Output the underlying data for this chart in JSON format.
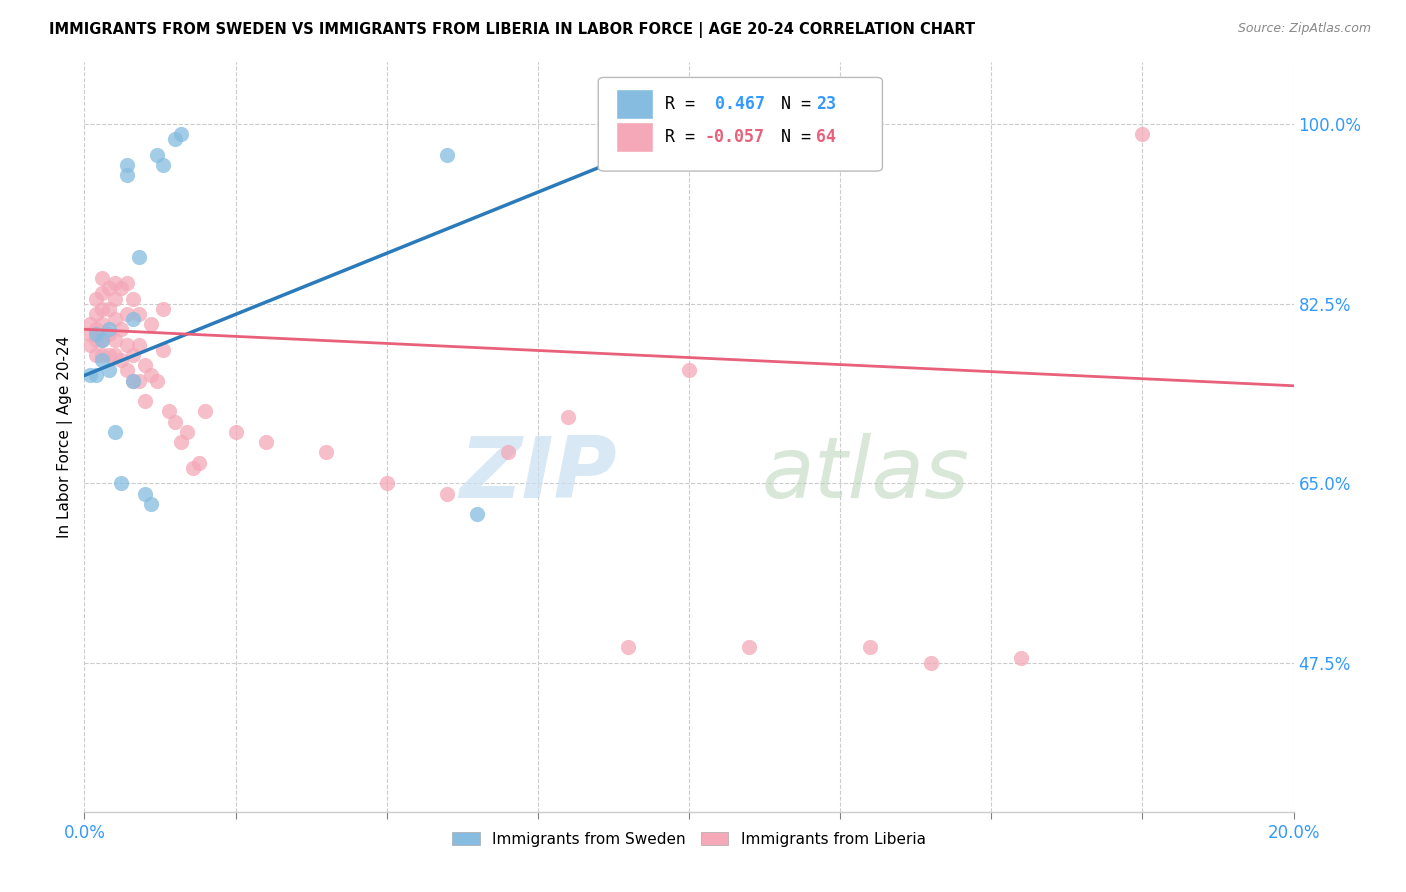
{
  "title": "IMMIGRANTS FROM SWEDEN VS IMMIGRANTS FROM LIBERIA IN LABOR FORCE | AGE 20-24 CORRELATION CHART",
  "source": "Source: ZipAtlas.com",
  "ylabel": "In Labor Force | Age 20-24",
  "ytick_labels": [
    "100.0%",
    "82.5%",
    "65.0%",
    "47.5%"
  ],
  "ytick_values": [
    1.0,
    0.825,
    0.65,
    0.475
  ],
  "legend_blue_r": "0.467",
  "legend_blue_n": "23",
  "legend_pink_r": "-0.057",
  "legend_pink_n": "64",
  "legend_label_blue": "Immigrants from Sweden",
  "legend_label_pink": "Immigrants from Liberia",
  "blue_dot_color": "#85bce0",
  "pink_dot_color": "#f4a8b8",
  "blue_line_color": "#2b7bba",
  "pink_line_color": "#e8607a",
  "xlim": [
    0.0,
    0.2
  ],
  "ylim": [
    0.33,
    1.06
  ],
  "xtick_positions": [
    0.0,
    0.025,
    0.05,
    0.075,
    0.1,
    0.125,
    0.15,
    0.175,
    0.2
  ],
  "blue_trend_x0": 0.0,
  "blue_trend_y0": 0.755,
  "blue_trend_x1": 0.105,
  "blue_trend_y1": 1.005,
  "pink_trend_x0": 0.0,
  "pink_trend_y0": 0.8,
  "pink_trend_x1": 0.2,
  "pink_trend_y1": 0.745,
  "sweden_x": [
    0.001,
    0.002,
    0.002,
    0.003,
    0.003,
    0.004,
    0.004,
    0.005,
    0.006,
    0.007,
    0.007,
    0.008,
    0.008,
    0.009,
    0.01,
    0.011,
    0.012,
    0.013,
    0.015,
    0.016,
    0.06,
    0.065,
    0.1
  ],
  "sweden_y": [
    0.755,
    0.755,
    0.795,
    0.77,
    0.79,
    0.76,
    0.8,
    0.7,
    0.65,
    0.95,
    0.96,
    0.81,
    0.75,
    0.87,
    0.64,
    0.63,
    0.97,
    0.96,
    0.985,
    0.99,
    0.97,
    0.62,
    0.99
  ],
  "liberia_x": [
    0.001,
    0.001,
    0.001,
    0.002,
    0.002,
    0.002,
    0.002,
    0.002,
    0.003,
    0.003,
    0.003,
    0.003,
    0.003,
    0.003,
    0.004,
    0.004,
    0.004,
    0.004,
    0.005,
    0.005,
    0.005,
    0.005,
    0.005,
    0.006,
    0.006,
    0.006,
    0.007,
    0.007,
    0.007,
    0.007,
    0.008,
    0.008,
    0.008,
    0.009,
    0.009,
    0.009,
    0.01,
    0.01,
    0.011,
    0.011,
    0.012,
    0.013,
    0.013,
    0.014,
    0.015,
    0.016,
    0.017,
    0.018,
    0.019,
    0.02,
    0.025,
    0.03,
    0.04,
    0.05,
    0.06,
    0.07,
    0.08,
    0.09,
    0.1,
    0.11,
    0.13,
    0.14,
    0.155,
    0.175
  ],
  "liberia_y": [
    0.785,
    0.795,
    0.805,
    0.775,
    0.79,
    0.8,
    0.815,
    0.83,
    0.775,
    0.79,
    0.805,
    0.82,
    0.835,
    0.85,
    0.775,
    0.795,
    0.82,
    0.84,
    0.775,
    0.79,
    0.81,
    0.83,
    0.845,
    0.77,
    0.8,
    0.84,
    0.76,
    0.785,
    0.815,
    0.845,
    0.75,
    0.775,
    0.83,
    0.75,
    0.785,
    0.815,
    0.73,
    0.765,
    0.755,
    0.805,
    0.75,
    0.78,
    0.82,
    0.72,
    0.71,
    0.69,
    0.7,
    0.665,
    0.67,
    0.72,
    0.7,
    0.69,
    0.68,
    0.65,
    0.64,
    0.68,
    0.715,
    0.49,
    0.76,
    0.49,
    0.49,
    0.475,
    0.48,
    0.99
  ]
}
